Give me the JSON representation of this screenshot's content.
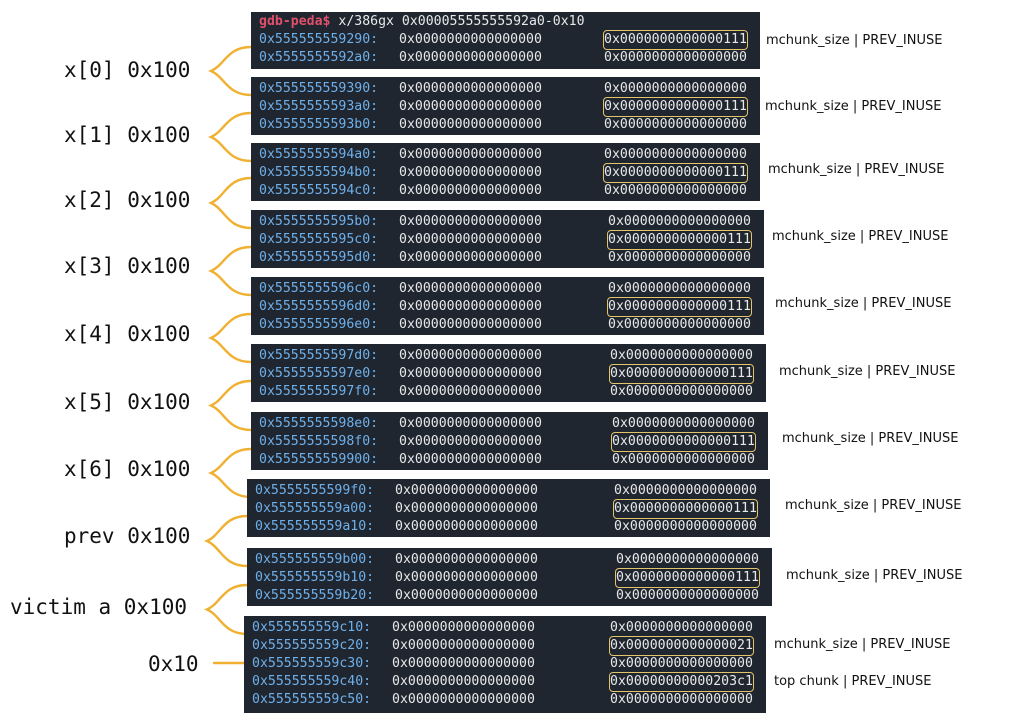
{
  "command": {
    "prompt": "gdb-peda$",
    "text": " x/386gx 0x00005555555592a0-0x10"
  },
  "colors": {
    "panel": "#1f2630",
    "address": "#6fb0ea",
    "value": "#e8e8e8",
    "prompt": "#e0506a",
    "highlight": "#e3c46a",
    "brace": "#f0b030"
  },
  "panels": [
    {
      "rows": [
        {
          "addr": "0x555555559290:",
          "mid": "0x0000000000000000",
          "right": "0x0000000000000111",
          "boxed": true
        },
        {
          "addr": "0x5555555592a0:",
          "mid": "0x0000000000000000",
          "right": "0x0000000000000000",
          "boxed": false
        }
      ]
    },
    {
      "rows": [
        {
          "addr": "0x555555559390:",
          "mid": "0x0000000000000000",
          "right": "0x0000000000000000",
          "boxed": false
        },
        {
          "addr": "0x5555555593a0:",
          "mid": "0x0000000000000000",
          "right": "0x0000000000000111",
          "boxed": true
        },
        {
          "addr": "0x5555555593b0:",
          "mid": "0x0000000000000000",
          "right": "0x0000000000000000",
          "boxed": false
        }
      ]
    },
    {
      "rows": [
        {
          "addr": "0x5555555594a0:",
          "mid": "0x0000000000000000",
          "right": "0x0000000000000000",
          "boxed": false
        },
        {
          "addr": "0x5555555594b0:",
          "mid": "0x0000000000000000",
          "right": "0x0000000000000111",
          "boxed": true
        },
        {
          "addr": "0x5555555594c0:",
          "mid": "0x0000000000000000",
          "right": "0x0000000000000000",
          "boxed": false
        }
      ]
    },
    {
      "rows": [
        {
          "addr": "0x5555555595b0:",
          "mid": "0x0000000000000000",
          "right": "0x0000000000000000",
          "boxed": false
        },
        {
          "addr": "0x5555555595c0:",
          "mid": "0x0000000000000000",
          "right": "0x0000000000000111",
          "boxed": true
        },
        {
          "addr": "0x5555555595d0:",
          "mid": "0x0000000000000000",
          "right": "0x0000000000000000",
          "boxed": false
        }
      ]
    },
    {
      "rows": [
        {
          "addr": "0x5555555596c0:",
          "mid": "0x0000000000000000",
          "right": "0x0000000000000000",
          "boxed": false
        },
        {
          "addr": "0x5555555596d0:",
          "mid": "0x0000000000000000",
          "right": "0x0000000000000111",
          "boxed": true
        },
        {
          "addr": "0x5555555596e0:",
          "mid": "0x0000000000000000",
          "right": "0x0000000000000000",
          "boxed": false
        }
      ]
    },
    {
      "rows": [
        {
          "addr": "0x5555555597d0:",
          "mid": "0x0000000000000000",
          "right": "0x0000000000000000",
          "boxed": false
        },
        {
          "addr": "0x5555555597e0:",
          "mid": "0x0000000000000000",
          "right": "0x0000000000000111",
          "boxed": true
        },
        {
          "addr": "0x5555555597f0:",
          "mid": "0x0000000000000000",
          "right": "0x0000000000000000",
          "boxed": false
        }
      ]
    },
    {
      "rows": [
        {
          "addr": "0x5555555598e0:",
          "mid": "0x0000000000000000",
          "right": "0x0000000000000000",
          "boxed": false
        },
        {
          "addr": "0x5555555598f0:",
          "mid": "0x0000000000000000",
          "right": "0x0000000000000111",
          "boxed": true
        },
        {
          "addr": "0x555555559900:",
          "mid": "0x0000000000000000",
          "right": "0x0000000000000000",
          "boxed": false
        }
      ]
    },
    {
      "rows": [
        {
          "addr": "0x5555555599f0:",
          "mid": "0x0000000000000000",
          "right": "0x0000000000000000",
          "boxed": false
        },
        {
          "addr": "0x555555559a00:",
          "mid": "0x0000000000000000",
          "right": "0x0000000000000111",
          "boxed": true
        },
        {
          "addr": "0x555555559a10:",
          "mid": "0x0000000000000000",
          "right": "0x0000000000000000",
          "boxed": false
        }
      ]
    },
    {
      "rows": [
        {
          "addr": "0x555555559b00:",
          "mid": "0x0000000000000000",
          "right": "0x0000000000000000",
          "boxed": false
        },
        {
          "addr": "0x555555559b10:",
          "mid": "0x0000000000000000",
          "right": "0x0000000000000111",
          "boxed": true
        },
        {
          "addr": "0x555555559b20:",
          "mid": "0x0000000000000000",
          "right": "0x0000000000000000",
          "boxed": false
        }
      ]
    },
    {
      "rows": [
        {
          "addr": "0x555555559c10:",
          "mid": "0x0000000000000000",
          "right": "0x0000000000000000",
          "boxed": false
        },
        {
          "addr": "0x555555559c20:",
          "mid": "0x0000000000000000",
          "right": "0x0000000000000021",
          "boxed": true
        },
        {
          "addr": "0x555555559c30:",
          "mid": "0x0000000000000000",
          "right": "0x0000000000000000",
          "boxed": false
        },
        {
          "addr": "0x555555559c40:",
          "mid": "0x0000000000000000",
          "right": "0x00000000000203c1",
          "boxed": true
        },
        {
          "addr": "0x555555559c50:",
          "mid": "0x0000000000000000",
          "right": "0x0000000000000000",
          "boxed": false
        }
      ]
    }
  ],
  "annotations": [
    "mchunk_size | PREV_INUSE",
    "mchunk_size | PREV_INUSE",
    "mchunk_size | PREV_INUSE",
    "mchunk_size | PREV_INUSE",
    "mchunk_size | PREV_INUSE",
    "mchunk_size | PREV_INUSE",
    "mchunk_size | PREV_INUSE",
    "mchunk_size | PREV_INUSE",
    "mchunk_size | PREV_INUSE",
    "mchunk_size | PREV_INUSE",
    "top chunk | PREV_INUSE"
  ],
  "labels": [
    "x[0] 0x100",
    "x[1] 0x100",
    "x[2] 0x100",
    "x[3] 0x100",
    "x[4] 0x100",
    "x[5] 0x100",
    "x[6] 0x100",
    "prev 0x100",
    "victim a 0x100",
    "0x10"
  ]
}
